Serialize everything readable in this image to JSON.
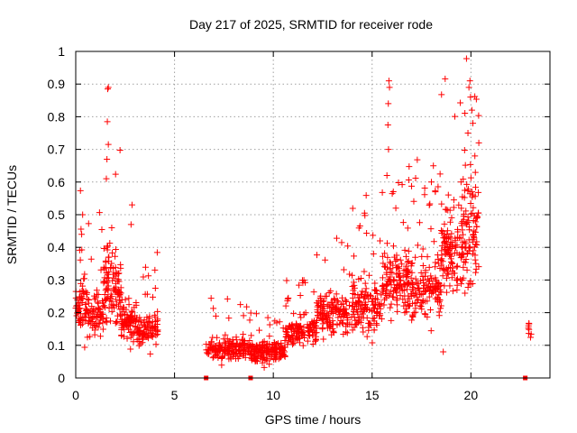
{
  "chart_data": {
    "type": "scatter",
    "title": "Day 217 of 2025, SRMTID for receiver rode",
    "xlabel": "GPS time / hours",
    "ylabel": "SRMTID / TECUs",
    "xlim": [
      0,
      24
    ],
    "ylim": [
      0,
      1
    ],
    "xticks": [
      0,
      5,
      10,
      15,
      20
    ],
    "yticks": [
      0,
      0.1,
      0.2,
      0.3,
      0.4,
      0.5,
      0.6,
      0.7,
      0.8,
      0.9,
      1
    ],
    "xtick_labels": [
      "0",
      "5",
      "10",
      "15",
      "20"
    ],
    "ytick_labels": [
      "0",
      "0.1",
      "0.2",
      "0.3",
      "0.4",
      "0.5",
      "0.6",
      "0.7",
      "0.8",
      "0.9",
      "1"
    ],
    "grid": true,
    "color": "#ff0000",
    "marker": "plus",
    "series": [
      {
        "name": "SRMTID",
        "segments": [
          {
            "x_start": 0.0,
            "x_end": 0.6,
            "base": 0.22,
            "spread": 0.08,
            "n": 70
          },
          {
            "x_start": 0.6,
            "x_end": 1.4,
            "base": 0.2,
            "spread": 0.07,
            "n": 70
          },
          {
            "x_start": 1.4,
            "x_end": 2.3,
            "base": 0.28,
            "spread": 0.12,
            "n": 110
          },
          {
            "x_start": 2.3,
            "x_end": 3.1,
            "base": 0.18,
            "spread": 0.07,
            "n": 80
          },
          {
            "x_start": 3.1,
            "x_end": 4.2,
            "base": 0.15,
            "spread": 0.05,
            "n": 90
          },
          {
            "x_start": 6.6,
            "x_end": 8.8,
            "base": 0.09,
            "spread": 0.035,
            "n": 170
          },
          {
            "x_start": 8.8,
            "x_end": 10.6,
            "base": 0.08,
            "spread": 0.03,
            "n": 170
          },
          {
            "x_start": 10.6,
            "x_end": 12.2,
            "base": 0.14,
            "spread": 0.04,
            "n": 130
          },
          {
            "x_start": 12.2,
            "x_end": 14.0,
            "base": 0.2,
            "spread": 0.06,
            "n": 150
          },
          {
            "x_start": 14.0,
            "x_end": 15.5,
            "base": 0.22,
            "spread": 0.08,
            "n": 140
          },
          {
            "x_start": 15.5,
            "x_end": 17.0,
            "base": 0.3,
            "spread": 0.1,
            "n": 150
          },
          {
            "x_start": 17.0,
            "x_end": 18.5,
            "base": 0.27,
            "spread": 0.09,
            "n": 140
          },
          {
            "x_start": 18.5,
            "x_end": 19.5,
            "base": 0.38,
            "spread": 0.12,
            "n": 110
          },
          {
            "x_start": 19.5,
            "x_end": 20.4,
            "base": 0.45,
            "spread": 0.15,
            "n": 110
          },
          {
            "x_start": 22.9,
            "x_end": 23.05,
            "base": 0.15,
            "spread": 0.03,
            "n": 8
          }
        ],
        "peaks": [
          {
            "x": 1.65,
            "y": 0.89
          },
          {
            "x": 1.62,
            "y": 0.885
          },
          {
            "x": 1.6,
            "y": 0.785
          },
          {
            "x": 1.65,
            "y": 0.715
          },
          {
            "x": 1.58,
            "y": 0.67
          },
          {
            "x": 1.55,
            "y": 0.61
          },
          {
            "x": 2.85,
            "y": 0.53
          },
          {
            "x": 2.8,
            "y": 0.47
          },
          {
            "x": 0.35,
            "y": 0.5
          },
          {
            "x": 0.3,
            "y": 0.44
          },
          {
            "x": 15.85,
            "y": 0.91
          },
          {
            "x": 15.88,
            "y": 0.89
          },
          {
            "x": 15.82,
            "y": 0.84
          },
          {
            "x": 15.8,
            "y": 0.775
          },
          {
            "x": 15.83,
            "y": 0.7
          },
          {
            "x": 15.75,
            "y": 0.62
          },
          {
            "x": 16.2,
            "y": 0.52
          },
          {
            "x": 18.1,
            "y": 0.65
          },
          {
            "x": 18.0,
            "y": 0.6
          },
          {
            "x": 18.2,
            "y": 0.57
          },
          {
            "x": 19.95,
            "y": 0.91
          },
          {
            "x": 19.9,
            "y": 0.89
          },
          {
            "x": 19.98,
            "y": 0.86
          },
          {
            "x": 20.05,
            "y": 0.82
          },
          {
            "x": 20.1,
            "y": 0.78
          },
          {
            "x": 19.85,
            "y": 0.75
          },
          {
            "x": 20.4,
            "y": 0.72
          },
          {
            "x": 20.2,
            "y": 0.68
          },
          {
            "x": 19.5,
            "y": 0.6
          },
          {
            "x": 18.6,
            "y": 0.08
          }
        ],
        "floor_points": [
          {
            "x": 6.6,
            "y": 0.0
          },
          {
            "x": 8.85,
            "y": 0.0
          },
          {
            "x": 22.75,
            "y": 0.0
          }
        ]
      }
    ]
  }
}
